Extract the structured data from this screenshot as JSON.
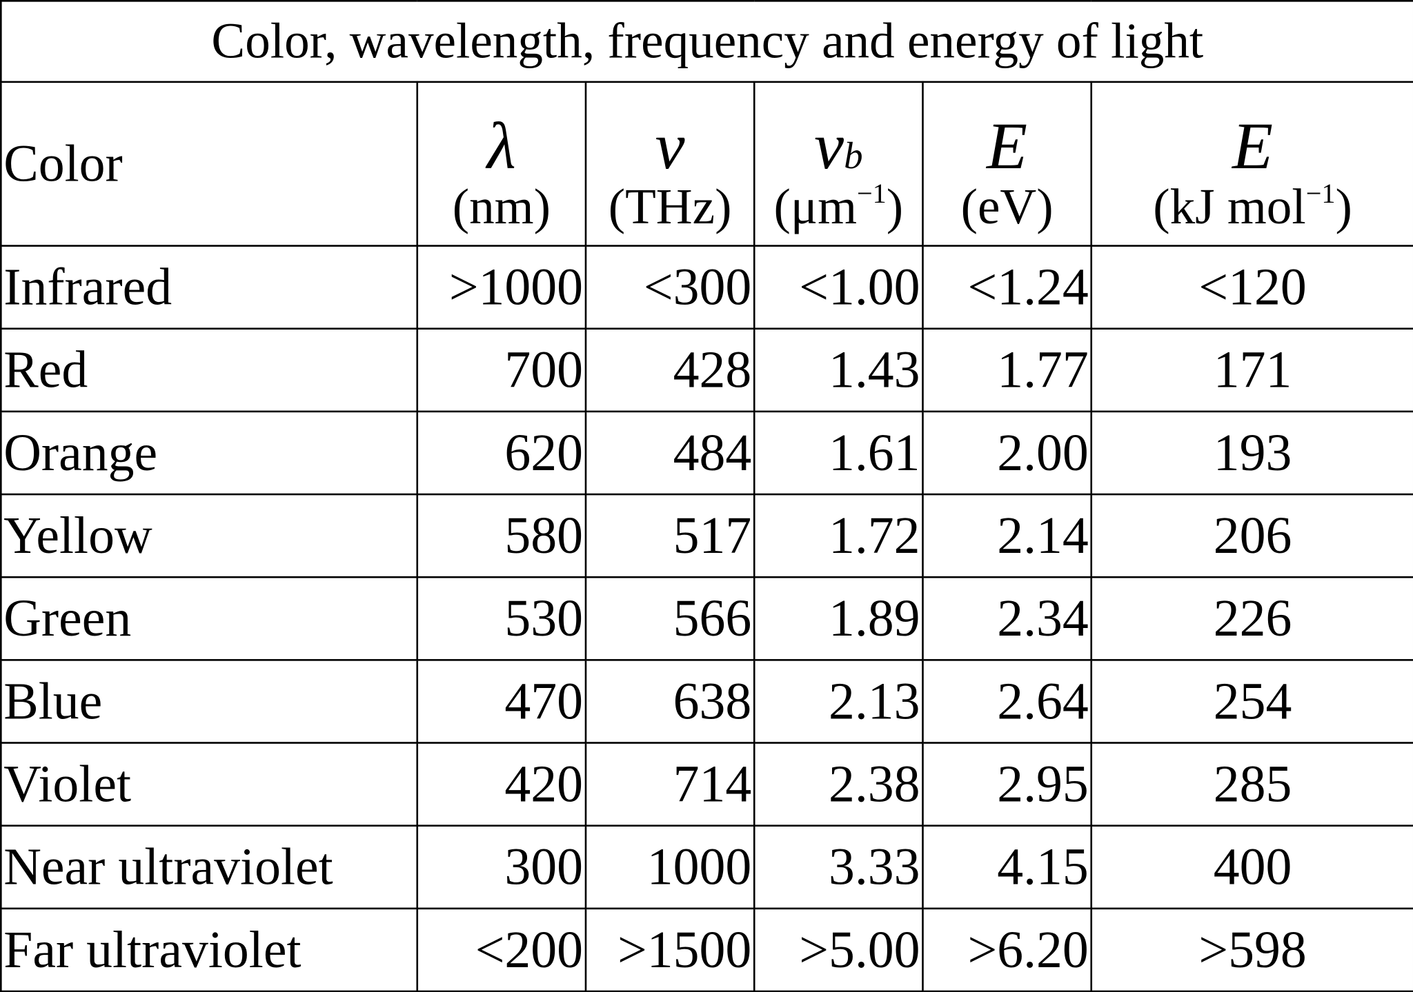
{
  "title": "Color, wavelength, frequency and energy of light",
  "headers": [
    {
      "label": "Color"
    },
    {
      "symbol": "λ",
      "unit": "(nm)"
    },
    {
      "symbol": "ν",
      "unit": "(THz)"
    },
    {
      "symbol": "ν",
      "subscript": "b",
      "unit_base": "(μm",
      "unit_exp": "−1",
      "unit_close": ")"
    },
    {
      "symbol": "E",
      "unit": "(eV)"
    },
    {
      "symbol": "E",
      "unit_base": "(kJ mol",
      "unit_exp": "−1",
      "unit_close": ")"
    }
  ],
  "rows": [
    {
      "color": "Infrared",
      "wavelength": ">1000",
      "frequency": "<300",
      "wavenumber": "<1.00",
      "energy_ev": "<1.24",
      "energy_kj": "<120"
    },
    {
      "color": "Red",
      "wavelength": "700",
      "frequency": "428",
      "wavenumber": "1.43",
      "energy_ev": "1.77",
      "energy_kj": "171"
    },
    {
      "color": "Orange",
      "wavelength": "620",
      "frequency": "484",
      "wavenumber": "1.61",
      "energy_ev": "2.00",
      "energy_kj": "193"
    },
    {
      "color": "Yellow",
      "wavelength": "580",
      "frequency": "517",
      "wavenumber": "1.72",
      "energy_ev": "2.14",
      "energy_kj": "206"
    },
    {
      "color": "Green",
      "wavelength": "530",
      "frequency": "566",
      "wavenumber": "1.89",
      "energy_ev": "2.34",
      "energy_kj": "226"
    },
    {
      "color": "Blue",
      "wavelength": "470",
      "frequency": "638",
      "wavenumber": "2.13",
      "energy_ev": "2.64",
      "energy_kj": "254"
    },
    {
      "color": "Violet",
      "wavelength": "420",
      "frequency": "714",
      "wavenumber": "2.38",
      "energy_ev": "2.95",
      "energy_kj": "285"
    },
    {
      "color": "Near ultraviolet",
      "wavelength": "300",
      "frequency": "1000",
      "wavenumber": "3.33",
      "energy_ev": "4.15",
      "energy_kj": "400"
    },
    {
      "color": "Far ultraviolet",
      "wavelength": "<200",
      "frequency": ">1500",
      "wavenumber": ">5.00",
      "energy_ev": ">6.20",
      "energy_kj": ">598"
    }
  ]
}
